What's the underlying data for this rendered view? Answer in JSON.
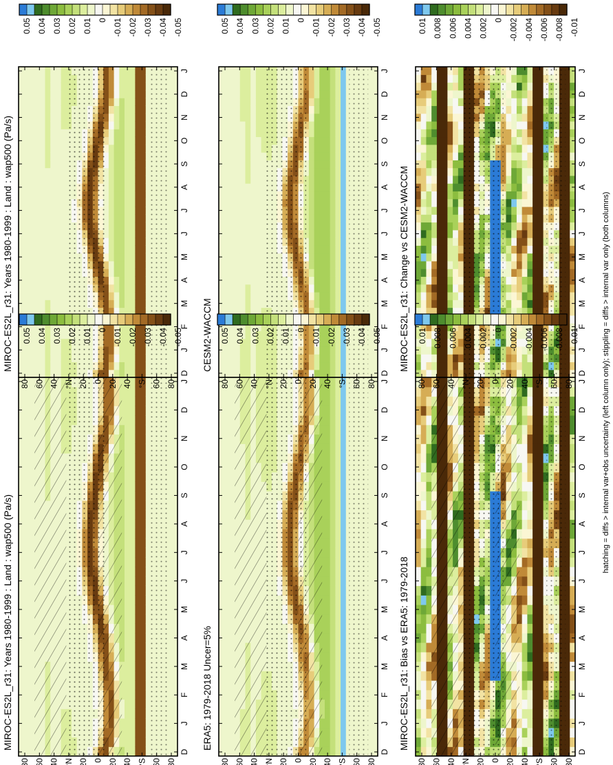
{
  "figure": {
    "footnote": "hatching = diffs > internal var+obs uncertainty (left column only); stippling = diffs > internal var only (both columns)"
  },
  "chart_data": [
    {
      "type": "heatmap",
      "title": "MIROC-ES2L_r31: Years 1980-1999 : Land : wap500 (Pa/s)",
      "x_ticks": [
        "D",
        "J",
        "F",
        "M",
        "A",
        "M",
        "J",
        "J",
        "A",
        "S",
        "O",
        "N",
        "D",
        "J"
      ],
      "y_ticks": [
        "80",
        "60",
        "40",
        "°N",
        "20",
        "0",
        "20",
        "40",
        "°S",
        "60",
        "80"
      ],
      "colorbar_labels": [
        "0.05",
        "0.04",
        "0.03",
        "0.02",
        "0.01",
        "0",
        "-0.01",
        "-0.02",
        "-0.03",
        "-0.04",
        "-0.05"
      ],
      "colorbar_colors": [
        "#2b7bd6",
        "#7ec8ee",
        "#2f6b1f",
        "#4e8d2e",
        "#6ea837",
        "#8cbd3f",
        "#a9d15a",
        "#c4e07b",
        "#dcee9e",
        "#eef6cc",
        "#f7f7f2",
        "#fbf6d4",
        "#f2e3a3",
        "#e7cc7a",
        "#d6ad55",
        "#c08a38",
        "#a36a25",
        "#845018",
        "#683b10",
        "#4a2908"
      ],
      "field": {
        "rainband": [
          [
            0,
            -5
          ],
          [
            0.5,
            -12
          ],
          [
            1.5,
            -15
          ],
          [
            2.5,
            -13
          ],
          [
            3.5,
            -9
          ],
          [
            4.5,
            -4
          ],
          [
            5.5,
            3
          ],
          [
            6.5,
            8
          ],
          [
            7.5,
            9
          ],
          [
            8.5,
            6
          ],
          [
            9.5,
            1
          ],
          [
            10.5,
            -4
          ],
          [
            11.5,
            -11
          ],
          [
            12,
            -13
          ]
        ],
        "ascent": -0.045,
        "descent_sh": 0.012,
        "descent_nh": 0.006,
        "band_south": -48,
        "band_south_value": -0.035
      },
      "hatching": true,
      "stippling": true
    },
    {
      "type": "heatmap",
      "title": "MIROC-ES2L_r31: Years 1980-1999 : Land : wap500 (Pa/s)",
      "x_ticks": [
        "D",
        "J",
        "F",
        "M",
        "A",
        "M",
        "J",
        "J",
        "A",
        "S",
        "O",
        "N",
        "D",
        "J"
      ],
      "y_ticks": [
        "80",
        "60",
        "40",
        "°N",
        "20",
        "0",
        "20",
        "40",
        "°S",
        "60",
        "80"
      ],
      "colorbar_labels": [
        "0.05",
        "0.04",
        "0.03",
        "0.02",
        "0.01",
        "0",
        "-0.01",
        "-0.02",
        "-0.03",
        "-0.04",
        "-0.05"
      ],
      "colorbar_colors": [
        "#2b7bd6",
        "#7ec8ee",
        "#2f6b1f",
        "#4e8d2e",
        "#6ea837",
        "#8cbd3f",
        "#a9d15a",
        "#c4e07b",
        "#dcee9e",
        "#eef6cc",
        "#f7f7f2",
        "#fbf6d4",
        "#f2e3a3",
        "#e7cc7a",
        "#d6ad55",
        "#c08a38",
        "#a36a25",
        "#845018",
        "#683b10",
        "#4a2908"
      ],
      "field": {
        "rainband": [
          [
            0,
            -4
          ],
          [
            0.5,
            -10
          ],
          [
            1.5,
            -13
          ],
          [
            2.5,
            -12
          ],
          [
            3.5,
            -8
          ],
          [
            4.5,
            -2
          ],
          [
            5.5,
            4
          ],
          [
            6.5,
            9
          ],
          [
            7.5,
            10
          ],
          [
            8.5,
            7
          ],
          [
            9.5,
            2
          ],
          [
            10.5,
            -3
          ],
          [
            11.5,
            -9
          ],
          [
            12,
            -11
          ]
        ],
        "ascent": -0.045,
        "descent_sh": 0.012,
        "descent_nh": 0.006,
        "band_south": -48,
        "band_south_value": -0.035
      },
      "hatching": false,
      "stippling": true
    },
    {
      "type": "heatmap",
      "title": "ERA5: 1979-2018 Uncer=5%",
      "x_ticks": [
        "D",
        "J",
        "F",
        "M",
        "A",
        "M",
        "J",
        "J",
        "A",
        "S",
        "O",
        "N",
        "D",
        "J"
      ],
      "y_ticks": [
        "80",
        "60",
        "40",
        "°N",
        "20",
        "0",
        "20",
        "40",
        "°S",
        "60",
        "80"
      ],
      "colorbar_labels": [
        "0.05",
        "0.04",
        "0.03",
        "0.02",
        "0.01",
        "0",
        "-0.01",
        "-0.02",
        "-0.03",
        "-0.04",
        "-0.05"
      ],
      "colorbar_colors": [
        "#2b7bd6",
        "#7ec8ee",
        "#2f6b1f",
        "#4e8d2e",
        "#6ea837",
        "#8cbd3f",
        "#a9d15a",
        "#c4e07b",
        "#dcee9e",
        "#eef6cc",
        "#f7f7f2",
        "#fbf6d4",
        "#f2e3a3",
        "#e7cc7a",
        "#d6ad55",
        "#c08a38",
        "#a36a25",
        "#845018",
        "#683b10",
        "#4a2908"
      ],
      "field": {
        "rainband": [
          [
            0,
            -5
          ],
          [
            0.5,
            -11
          ],
          [
            1.5,
            -14
          ],
          [
            2.5,
            -12
          ],
          [
            3.5,
            -8
          ],
          [
            4.5,
            -3
          ],
          [
            5.5,
            4
          ],
          [
            6.5,
            9
          ],
          [
            7.5,
            10
          ],
          [
            8.5,
            7
          ],
          [
            9.5,
            2
          ],
          [
            10.5,
            -4
          ],
          [
            11.5,
            -10
          ],
          [
            12,
            -12
          ]
        ],
        "ascent": -0.04,
        "descent_sh": 0.02,
        "descent_nh": 0.008,
        "band_south": -50,
        "band_south_value": 0.045
      },
      "hatching": true,
      "stippling": true
    },
    {
      "type": "heatmap",
      "title": "CESM2-WACCM",
      "x_ticks": [
        "D",
        "J",
        "F",
        "M",
        "A",
        "M",
        "J",
        "J",
        "A",
        "S",
        "O",
        "N",
        "D",
        "J"
      ],
      "y_ticks": [
        "80",
        "60",
        "40",
        "°N",
        "20",
        "0",
        "20",
        "40",
        "°S",
        "60",
        "80"
      ],
      "colorbar_labels": [
        "0.05",
        "0.04",
        "0.03",
        "0.02",
        "0.01",
        "0",
        "-0.01",
        "-0.02",
        "-0.03",
        "-0.04",
        "-0.05"
      ],
      "colorbar_colors": [
        "#2b7bd6",
        "#7ec8ee",
        "#2f6b1f",
        "#4e8d2e",
        "#6ea837",
        "#8cbd3f",
        "#a9d15a",
        "#c4e07b",
        "#dcee9e",
        "#eef6cc",
        "#f7f7f2",
        "#fbf6d4",
        "#f2e3a3",
        "#e7cc7a",
        "#d6ad55",
        "#c08a38",
        "#a36a25",
        "#845018",
        "#683b10",
        "#4a2908"
      ],
      "field": {
        "rainband": [
          [
            0,
            -4
          ],
          [
            0.5,
            -10
          ],
          [
            1.5,
            -13
          ],
          [
            2.5,
            -11
          ],
          [
            3.5,
            -7
          ],
          [
            4.5,
            -2
          ],
          [
            5.5,
            4
          ],
          [
            6.5,
            8
          ],
          [
            7.5,
            9
          ],
          [
            8.5,
            6
          ],
          [
            9.5,
            1
          ],
          [
            10.5,
            -3
          ],
          [
            11.5,
            -9
          ],
          [
            12,
            -11
          ]
        ],
        "ascent": -0.04,
        "descent_sh": 0.02,
        "descent_nh": 0.008,
        "band_south": -50,
        "band_south_value": 0.045
      },
      "hatching": false,
      "stippling": true
    },
    {
      "type": "heatmap",
      "title": "MIROC-ES2L_r31: Bias vs ERA5: 1979-2018",
      "x_ticks": [
        "D",
        "J",
        "F",
        "M",
        "A",
        "M",
        "J",
        "J",
        "A",
        "S",
        "O",
        "N",
        "D",
        "J"
      ],
      "y_ticks": [
        "80",
        "60",
        "40",
        "°N",
        "20",
        "0",
        "20",
        "40",
        "°S",
        "60",
        "80"
      ],
      "colorbar_labels": [
        "0.01",
        "0.008",
        "0.006",
        "0.004",
        "0.002",
        "0",
        "-0.002",
        "-0.004",
        "-0.006",
        "-0.008",
        "-0.01"
      ],
      "colorbar_colors": [
        "#2b7bd6",
        "#7ec8ee",
        "#2f6b1f",
        "#4e8d2e",
        "#6ea837",
        "#8cbd3f",
        "#a9d15a",
        "#c4e07b",
        "#dcee9e",
        "#eef6cc",
        "#f7f7f2",
        "#fbf6d4",
        "#f2e3a3",
        "#e7cc7a",
        "#d6ad55",
        "#c08a38",
        "#a36a25",
        "#845018",
        "#683b10",
        "#4a2908"
      ],
      "field": {
        "bias": true,
        "dark_bands_lat": [
          -80,
          -50,
          30,
          60
        ],
        "blue_band_lat": 0
      },
      "hatching": true,
      "stippling": true
    },
    {
      "type": "heatmap",
      "title": "MIROC-ES2L_r31: Change vs CESM2-WACCM",
      "x_ticks": [
        "D",
        "J",
        "F",
        "M",
        "A",
        "M",
        "J",
        "J",
        "A",
        "S",
        "O",
        "N",
        "D",
        "J"
      ],
      "y_ticks": [
        "80",
        "60",
        "40",
        "°N",
        "20",
        "0",
        "20",
        "40",
        "°S",
        "60",
        "80"
      ],
      "colorbar_labels": [
        "0.01",
        "0.008",
        "0.006",
        "0.004",
        "0.002",
        "0",
        "-0.002",
        "-0.004",
        "-0.006",
        "-0.008",
        "-0.01"
      ],
      "colorbar_colors": [
        "#2b7bd6",
        "#7ec8ee",
        "#2f6b1f",
        "#4e8d2e",
        "#6ea837",
        "#8cbd3f",
        "#a9d15a",
        "#c4e07b",
        "#dcee9e",
        "#eef6cc",
        "#f7f7f2",
        "#fbf6d4",
        "#f2e3a3",
        "#e7cc7a",
        "#d6ad55",
        "#c08a38",
        "#a36a25",
        "#845018",
        "#683b10",
        "#4a2908"
      ],
      "field": {
        "bias": true,
        "dark_bands_lat": [
          -80,
          -50,
          30,
          60
        ],
        "blue_band_lat": 0
      },
      "hatching": false,
      "stippling": true
    }
  ]
}
